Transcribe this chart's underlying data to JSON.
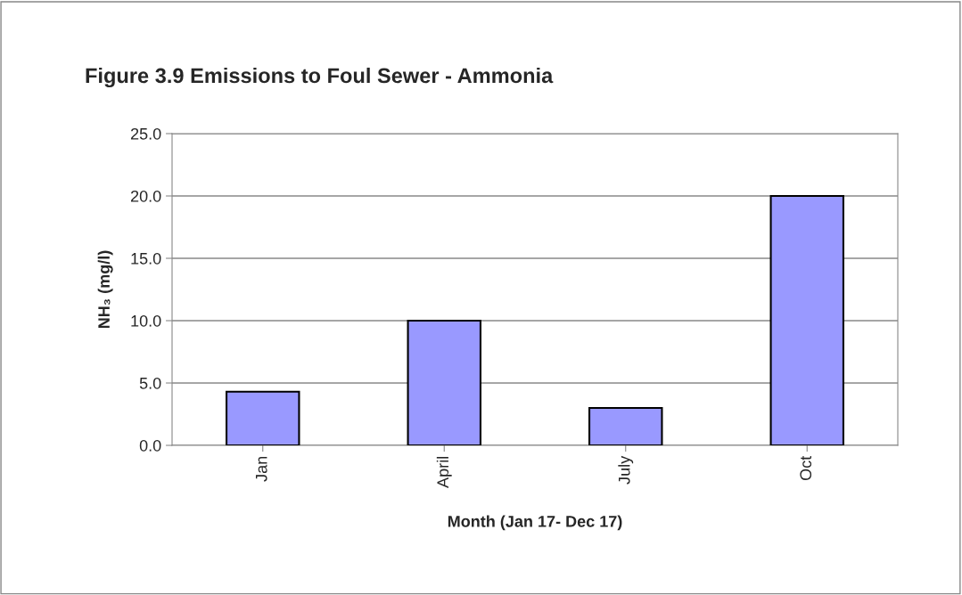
{
  "chart_data": {
    "type": "bar",
    "title": "Figure 3.9 Emissions to Foul Sewer - Ammonia",
    "xlabel": "Month (Jan 17- Dec 17)",
    "ylabel": "NH₃ (mg/l)",
    "categories": [
      "Jan",
      "April",
      "July",
      "Oct"
    ],
    "values": [
      4.3,
      10.0,
      3.0,
      20.0
    ],
    "color": "#9999ff",
    "ylim": [
      0,
      25
    ],
    "yticks": [
      {
        "value": 0,
        "label": "0.0"
      },
      {
        "value": 5,
        "label": "5.0"
      },
      {
        "value": 10,
        "label": "10.0"
      },
      {
        "value": 15,
        "label": "15.0"
      },
      {
        "value": 20,
        "label": "20.0"
      },
      {
        "value": 25,
        "label": "25.0"
      }
    ],
    "grid": "y"
  }
}
